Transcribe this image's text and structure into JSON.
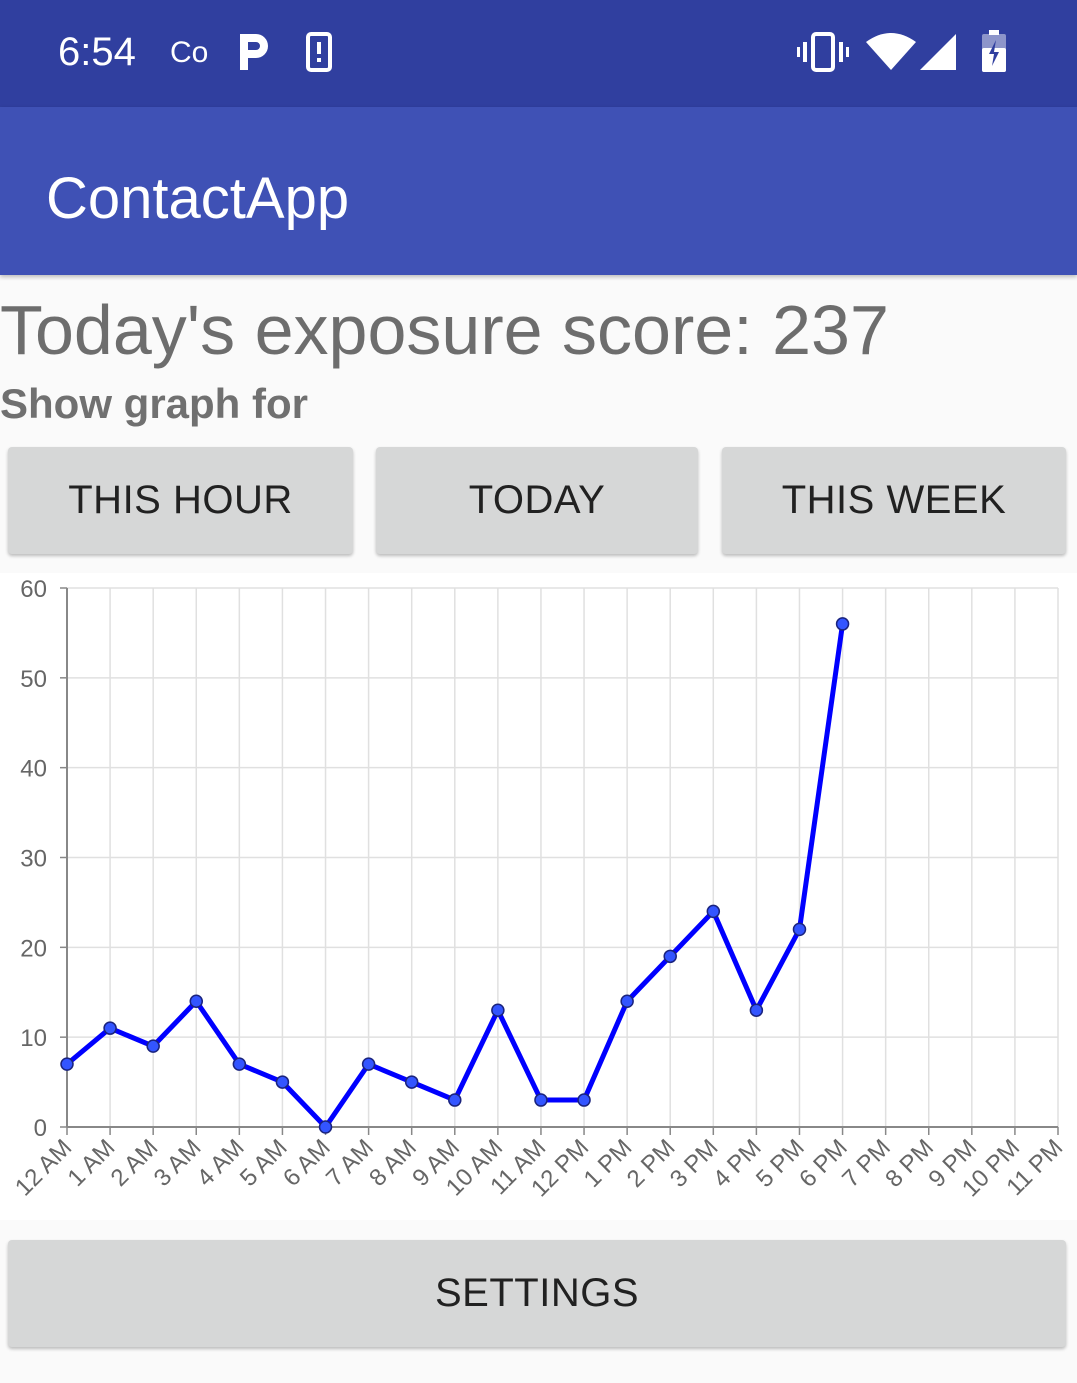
{
  "status_bar": {
    "time": "6:54",
    "carrier_text": "Co",
    "icons": [
      "p-icon",
      "phone-alert-icon",
      "vibrate-icon",
      "wifi-icon",
      "signal-icon",
      "battery-charging-icon"
    ]
  },
  "app_bar": {
    "title": "ContactApp"
  },
  "score_text": "Today's exposure score: 237",
  "show_graph_label": "Show graph for",
  "buttons": {
    "this_hour": "THIS HOUR",
    "today": "TODAY",
    "this_week": "THIS WEEK",
    "settings": "SETTINGS"
  },
  "colors": {
    "status_bar": "#303f9f",
    "app_bar": "#3f51b5",
    "line": "#0000ff",
    "marker": "#3355ff"
  },
  "chart_data": {
    "type": "line",
    "categories": [
      "12 AM",
      "1 AM",
      "2 AM",
      "3 AM",
      "4 AM",
      "5 AM",
      "6 AM",
      "7 AM",
      "8 AM",
      "9 AM",
      "10 AM",
      "11 AM",
      "12 PM",
      "1 PM",
      "2 PM",
      "3 PM",
      "4 PM",
      "5 PM",
      "6 PM",
      "7 PM",
      "8 PM",
      "9 PM",
      "10 PM",
      "11 PM"
    ],
    "series": [
      {
        "values": [
          7,
          11,
          9,
          14,
          7,
          5,
          0,
          7,
          5,
          3,
          13,
          3,
          3,
          14,
          19,
          24,
          13,
          22,
          56,
          null,
          null,
          null,
          null,
          null
        ]
      }
    ],
    "ylim": [
      0,
      60
    ],
    "yticks": [
      0,
      10,
      20,
      30,
      40,
      50,
      60
    ],
    "grid": true
  }
}
